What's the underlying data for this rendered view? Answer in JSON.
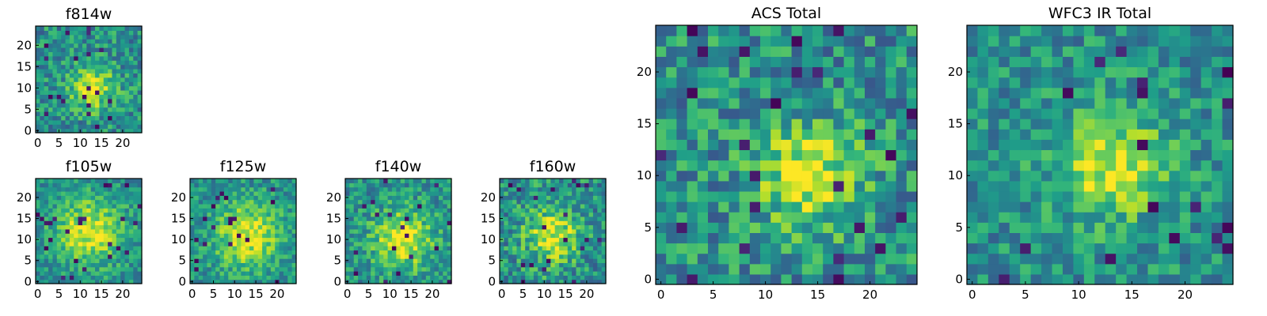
{
  "figure": {
    "colormap": "viridis",
    "colors": {
      "frame": "#000000",
      "low": "#440154",
      "mid": "#21918c",
      "high": "#fde725"
    }
  },
  "chart_data": [
    {
      "type": "heatmap",
      "title": "f814w",
      "grid": [
        25,
        25
      ],
      "xlim": [
        -0.5,
        24.5
      ],
      "ylim": [
        -0.5,
        24.5
      ],
      "xticks": [
        0,
        5,
        10,
        15,
        20
      ],
      "yticks": [
        0,
        5,
        10,
        15,
        20
      ],
      "peak_center": [
        13,
        10
      ],
      "peak_width": 3.5,
      "noise": 0.22,
      "seed": 11
    },
    {
      "type": "heatmap",
      "title": "f105w",
      "grid": [
        25,
        25
      ],
      "xlim": [
        -0.5,
        24.5
      ],
      "ylim": [
        -0.5,
        24.5
      ],
      "xticks": [
        0,
        5,
        10,
        15,
        20
      ],
      "yticks": [
        0,
        5,
        10,
        15,
        20
      ],
      "peak_center": [
        12,
        12
      ],
      "peak_width": 5.5,
      "noise": 0.18,
      "seed": 23
    },
    {
      "type": "heatmap",
      "title": "f125w",
      "grid": [
        25,
        25
      ],
      "xlim": [
        -0.5,
        24.5
      ],
      "ylim": [
        -0.5,
        24.5
      ],
      "xticks": [
        0,
        5,
        10,
        15,
        20
      ],
      "yticks": [
        0,
        5,
        10,
        15,
        20
      ],
      "peak_center": [
        13,
        11
      ],
      "peak_width": 5.5,
      "noise": 0.18,
      "seed": 37
    },
    {
      "type": "heatmap",
      "title": "f140w",
      "grid": [
        25,
        25
      ],
      "xlim": [
        -0.5,
        24.5
      ],
      "ylim": [
        -0.5,
        24.5
      ],
      "xticks": [
        0,
        5,
        10,
        15,
        20
      ],
      "yticks": [
        0,
        5,
        10,
        15,
        20
      ],
      "peak_center": [
        13,
        10
      ],
      "peak_width": 5.0,
      "noise": 0.2,
      "seed": 41
    },
    {
      "type": "heatmap",
      "title": "f160w",
      "grid": [
        25,
        25
      ],
      "xlim": [
        -0.5,
        24.5
      ],
      "ylim": [
        -0.5,
        24.5
      ],
      "xticks": [
        0,
        5,
        10,
        15,
        20
      ],
      "yticks": [
        0,
        5,
        10,
        15,
        20
      ],
      "peak_center": [
        12,
        11
      ],
      "peak_width": 4.5,
      "noise": 0.24,
      "seed": 53
    },
    {
      "type": "heatmap",
      "title": "ACS Total",
      "grid": [
        25,
        25
      ],
      "xlim": [
        -0.5,
        24.5
      ],
      "ylim": [
        -0.5,
        24.5
      ],
      "xticks": [
        0,
        5,
        10,
        15,
        20
      ],
      "yticks": [
        0,
        5,
        10,
        15,
        20
      ],
      "peak_center": [
        14,
        10
      ],
      "peak_width": 3.5,
      "noise": 0.24,
      "seed": 67
    },
    {
      "type": "heatmap",
      "title": "WFC3 IR Total",
      "grid": [
        25,
        25
      ],
      "xlim": [
        -0.5,
        24.5
      ],
      "ylim": [
        -0.5,
        24.5
      ],
      "xticks": [
        0,
        5,
        10,
        15,
        20
      ],
      "yticks": [
        0,
        5,
        10,
        15,
        20
      ],
      "peak_center": [
        13,
        11
      ],
      "peak_width": 3.5,
      "noise": 0.2,
      "seed": 79
    }
  ]
}
